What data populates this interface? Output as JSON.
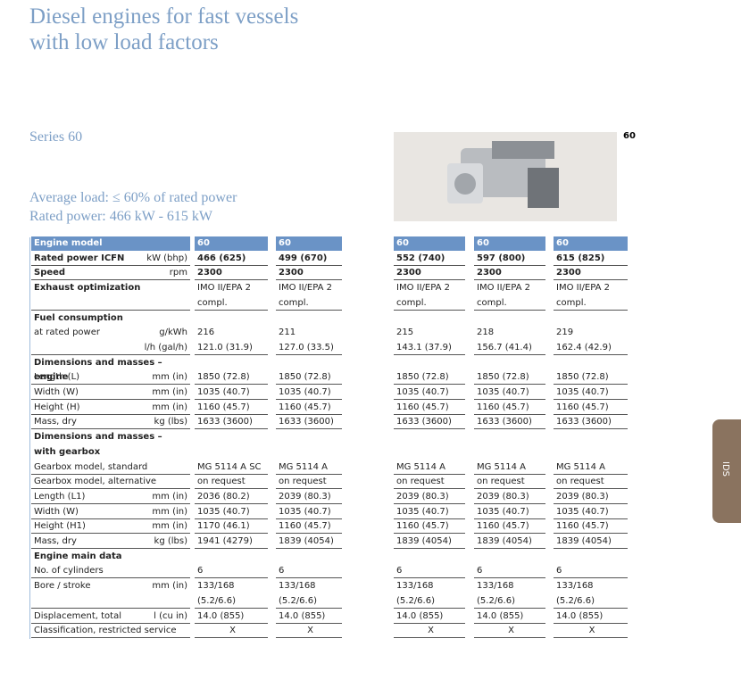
{
  "header": {
    "title_lines": [
      "Diesel engines for fast vessels",
      "with low load factors"
    ],
    "series": "Series 60",
    "image_label": "60",
    "load_lines": [
      "Average load: ≤ 60% of rated power",
      "Rated power: 466 kW - 615 kW"
    ],
    "side_tab": "IDS"
  },
  "table": {
    "rows": [
      {
        "label": "Engine model",
        "cells": [
          "60",
          "60",
          "60",
          "60",
          "60"
        ]
      },
      {
        "label": "Rated power ICFN",
        "unit": "kW (bhp)",
        "cells": [
          "466 (625)",
          "499 (670)",
          "552 (740)",
          "597 (800)",
          "615 (825)"
        ]
      },
      {
        "label": "Speed",
        "unit": "rpm",
        "cells": [
          "2300",
          "2300",
          "2300",
          "2300",
          "2300"
        ]
      },
      {
        "label": "Exhaust optimization",
        "cells": [
          "IMO II/EPA 2",
          "IMO II/EPA 2",
          "IMO II/EPA 2",
          "IMO II/EPA 2",
          "IMO II/EPA 2"
        ]
      },
      {
        "label": null,
        "cells": [
          "compl.",
          "compl.",
          "compl.",
          "compl.",
          "compl."
        ]
      },
      {
        "label": "Fuel consumption"
      },
      {
        "label": "at rated power",
        "unit": "g/kWh",
        "cells": [
          "216",
          "211",
          "215",
          "218",
          "219"
        ]
      },
      {
        "label": null,
        "unit": "l/h (gal/h)",
        "cells": [
          "121.0 (31.9)",
          "127.0 (33.5)",
          "143.1 (37.9)",
          "156.7 (41.4)",
          "162.4 (42.9)"
        ]
      },
      {
        "label": "Dimensions and masses – engine"
      },
      {
        "label": "Length (L)",
        "unit": "mm (in)",
        "cells": [
          "1850 (72.8)",
          "1850 (72.8)",
          "1850 (72.8)",
          "1850 (72.8)",
          "1850 (72.8)"
        ]
      },
      {
        "label": "Width (W)",
        "unit": "mm (in)",
        "cells": [
          "1035 (40.7)",
          "1035 (40.7)",
          "1035 (40.7)",
          "1035 (40.7)",
          "1035 (40.7)"
        ]
      },
      {
        "label": "Height (H)",
        "unit": "mm (in)",
        "cells": [
          "1160 (45.7)",
          "1160 (45.7)",
          "1160 (45.7)",
          "1160 (45.7)",
          "1160 (45.7)"
        ]
      },
      {
        "label": "Mass, dry",
        "unit": "kg (lbs)",
        "cells": [
          "1633 (3600)",
          "1633 (3600)",
          "1633 (3600)",
          "1633 (3600)",
          "1633 (3600)"
        ]
      },
      {
        "label": "Dimensions and masses –"
      },
      {
        "label": "with gearbox"
      },
      {
        "label": "Gearbox model, standard",
        "cells": [
          "MG 5114 A SC",
          "MG 5114 A",
          "MG 5114 A",
          "MG 5114 A",
          "MG 5114 A"
        ]
      },
      {
        "label": "Gearbox model, alternative",
        "cells": [
          "on request",
          "on request",
          "on request",
          "on request",
          "on request"
        ]
      },
      {
        "label": "Length (L1)",
        "unit": "mm (in)",
        "cells": [
          "2036 (80.2)",
          "2039 (80.3)",
          "2039 (80.3)",
          "2039 (80.3)",
          "2039 (80.3)"
        ]
      },
      {
        "label": "Width (W)",
        "unit": "mm (in)",
        "cells": [
          "1035 (40.7)",
          "1035 (40.7)",
          "1035 (40.7)",
          "1035 (40.7)",
          "1035 (40.7)"
        ]
      },
      {
        "label": "Height (H1)",
        "unit": "mm (in)",
        "cells": [
          "1170 (46.1)",
          "1160 (45.7)",
          "1160 (45.7)",
          "1160 (45.7)",
          "1160 (45.7)"
        ]
      },
      {
        "label": "Mass, dry",
        "unit": "kg (lbs)",
        "cells": [
          "1941 (4279)",
          "1839 (4054)",
          "1839 (4054)",
          "1839 (4054)",
          "1839 (4054)"
        ]
      },
      {
        "label": "Engine main data"
      },
      {
        "label": "No. of cylinders",
        "cells": [
          "6",
          "6",
          "6",
          "6",
          "6"
        ]
      },
      {
        "label": "Bore / stroke",
        "unit": "mm (in)",
        "cells": [
          "133/168",
          "133/168",
          "133/168",
          "133/168",
          "133/168"
        ]
      },
      {
        "label": null,
        "cells": [
          "(5.2/6.6)",
          "(5.2/6.6)",
          "(5.2/6.6)",
          "(5.2/6.6)",
          "(5.2/6.6)"
        ]
      },
      {
        "label": "Displacement, total",
        "unit": "l (cu in)",
        "cells": [
          "14.0 (855)",
          "14.0 (855)",
          "14.0 (855)",
          "14.0 (855)",
          "14.0 (855)"
        ]
      },
      {
        "label": "Classification, restricted service",
        "cells": [
          "X",
          "X",
          "X",
          "X",
          "X"
        ]
      }
    ]
  }
}
